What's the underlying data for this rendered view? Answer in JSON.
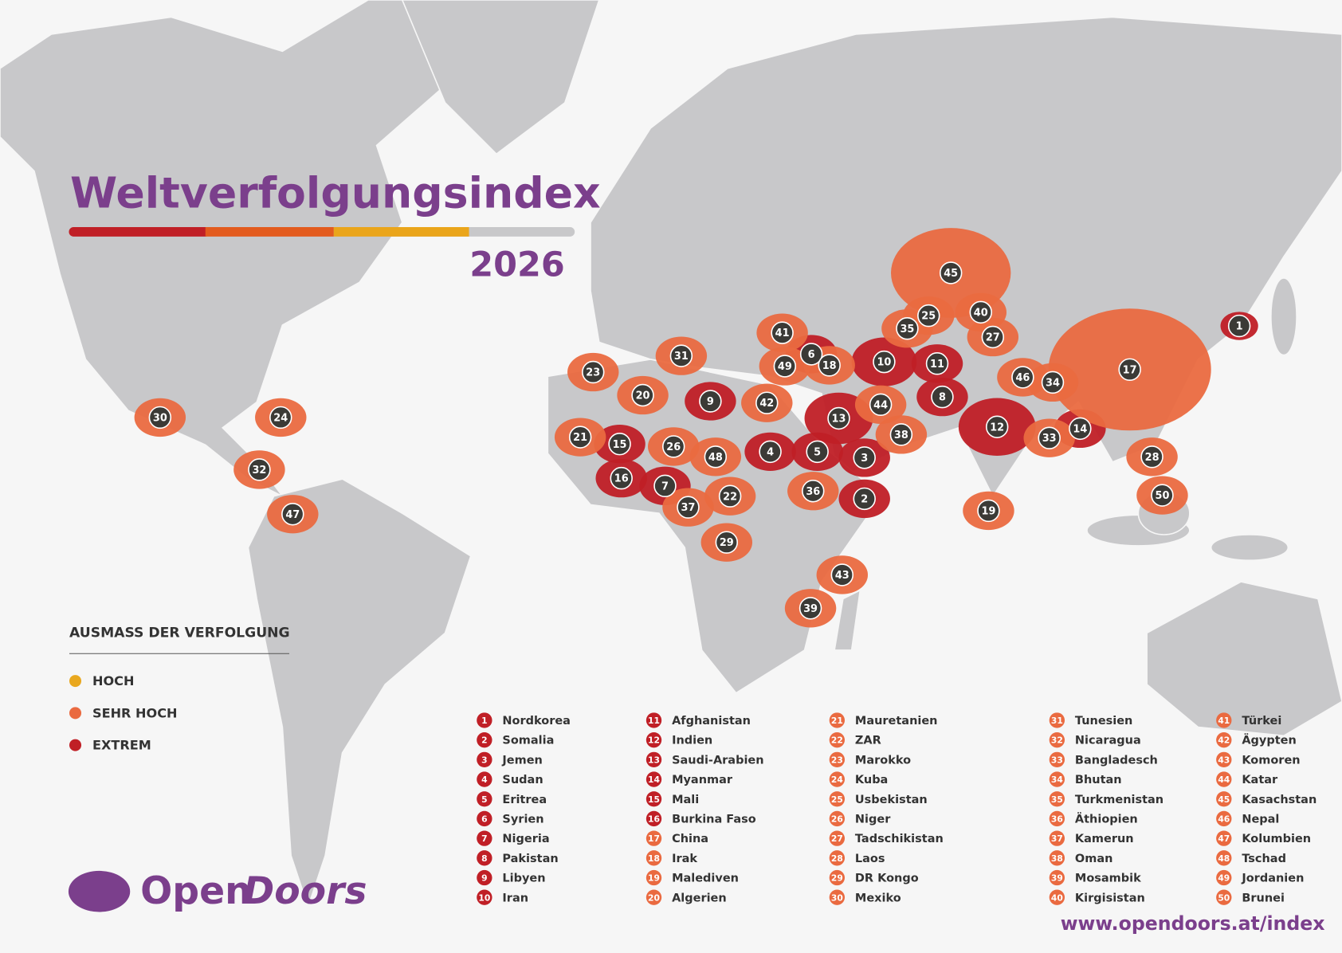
{
  "header": {
    "title": "Weltverfolgungsindex",
    "year": "2026"
  },
  "legend": {
    "title": "AUSMASS DER VERFOLGUNG",
    "items": [
      {
        "label": "HOCH",
        "color": "#e9a81f"
      },
      {
        "label": "SEHR HOCH",
        "color": "#ea6a40"
      },
      {
        "label": "EXTREM",
        "color": "#c01f26"
      }
    ]
  },
  "countries": [
    {
      "rank": 1,
      "name": "Nordkorea",
      "level": 2
    },
    {
      "rank": 2,
      "name": "Somalia",
      "level": 2
    },
    {
      "rank": 3,
      "name": "Jemen",
      "level": 2
    },
    {
      "rank": 4,
      "name": "Sudan",
      "level": 2
    },
    {
      "rank": 5,
      "name": "Eritrea",
      "level": 2
    },
    {
      "rank": 6,
      "name": "Syrien",
      "level": 2
    },
    {
      "rank": 7,
      "name": "Nigeria",
      "level": 2
    },
    {
      "rank": 8,
      "name": "Pakistan",
      "level": 2
    },
    {
      "rank": 9,
      "name": "Libyen",
      "level": 2
    },
    {
      "rank": 10,
      "name": "Iran",
      "level": 2
    },
    {
      "rank": 11,
      "name": "Afghanistan",
      "level": 2
    },
    {
      "rank": 12,
      "name": "Indien",
      "level": 2
    },
    {
      "rank": 13,
      "name": "Saudi-Arabien",
      "level": 2
    },
    {
      "rank": 14,
      "name": "Myanmar",
      "level": 2
    },
    {
      "rank": 15,
      "name": "Mali",
      "level": 2
    },
    {
      "rank": 16,
      "name": "Burkina Faso",
      "level": 2
    },
    {
      "rank": 17,
      "name": "China",
      "level": 1
    },
    {
      "rank": 18,
      "name": "Irak",
      "level": 1
    },
    {
      "rank": 19,
      "name": "Malediven",
      "level": 1
    },
    {
      "rank": 20,
      "name": "Algerien",
      "level": 1
    },
    {
      "rank": 21,
      "name": "Mauretanien",
      "level": 1
    },
    {
      "rank": 22,
      "name": "ZAR",
      "level": 1
    },
    {
      "rank": 23,
      "name": "Marokko",
      "level": 1
    },
    {
      "rank": 24,
      "name": "Kuba",
      "level": 1
    },
    {
      "rank": 25,
      "name": "Usbekistan",
      "level": 1
    },
    {
      "rank": 26,
      "name": "Niger",
      "level": 1
    },
    {
      "rank": 27,
      "name": "Tadschikistan",
      "level": 1
    },
    {
      "rank": 28,
      "name": "Laos",
      "level": 1
    },
    {
      "rank": 29,
      "name": "DR Kongo",
      "level": 1
    },
    {
      "rank": 30,
      "name": "Mexiko",
      "level": 1
    },
    {
      "rank": 31,
      "name": "Tunesien",
      "level": 1
    },
    {
      "rank": 32,
      "name": "Nicaragua",
      "level": 1
    },
    {
      "rank": 33,
      "name": "Bangladesch",
      "level": 1
    },
    {
      "rank": 34,
      "name": "Bhutan",
      "level": 1
    },
    {
      "rank": 35,
      "name": "Turkmenistan",
      "level": 1
    },
    {
      "rank": 36,
      "name": "Äthiopien",
      "level": 1
    },
    {
      "rank": 37,
      "name": "Kamerun",
      "level": 1
    },
    {
      "rank": 38,
      "name": "Oman",
      "level": 1
    },
    {
      "rank": 39,
      "name": "Mosambik",
      "level": 1
    },
    {
      "rank": 40,
      "name": "Kirgisistan",
      "level": 1
    },
    {
      "rank": 41,
      "name": "Türkei",
      "level": 1
    },
    {
      "rank": 42,
      "name": "Ägypten",
      "level": 1
    },
    {
      "rank": 43,
      "name": "Komoren",
      "level": 1
    },
    {
      "rank": 44,
      "name": "Katar",
      "level": 1
    },
    {
      "rank": 45,
      "name": "Kasachstan",
      "level": 1
    },
    {
      "rank": 46,
      "name": "Nepal",
      "level": 1
    },
    {
      "rank": 47,
      "name": "Kolumbien",
      "level": 1
    },
    {
      "rank": 48,
      "name": "Tschad",
      "level": 1
    },
    {
      "rank": 49,
      "name": "Jordanien",
      "level": 1
    },
    {
      "rank": 50,
      "name": "Brunei",
      "level": 1
    }
  ],
  "logo": {
    "open": "Open",
    "doors": "Doors"
  },
  "url": "www.opendoors.at/index"
}
